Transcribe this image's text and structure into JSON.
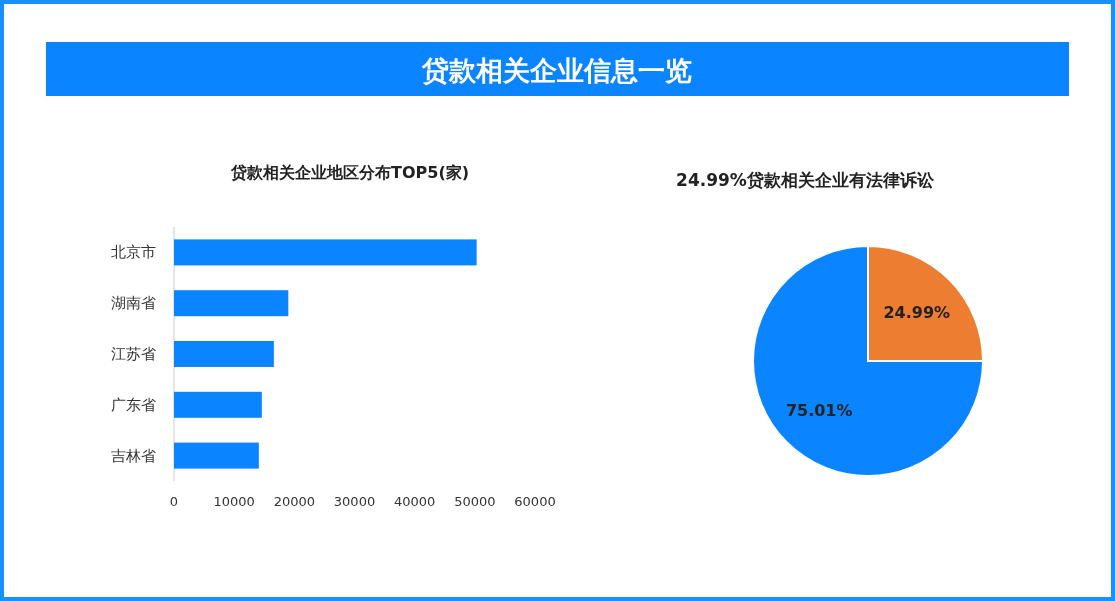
{
  "chart_data": [
    {
      "type": "other",
      "title": "贷款相关企业信息一览"
    },
    {
      "type": "bar",
      "orientation": "horizontal",
      "title": "贷款相关企业地区分布TOP5(家)",
      "categories": [
        "北京市",
        "湖南省",
        "江苏省",
        "广东省",
        "吉林省"
      ],
      "values": [
        50300,
        19000,
        16600,
        14600,
        14100
      ],
      "color": "#0a84ff",
      "xlim": [
        0,
        60000
      ],
      "xticks": [
        0,
        10000,
        20000,
        30000,
        40000,
        50000,
        60000
      ],
      "grid": false
    },
    {
      "type": "pie",
      "title": "24.99%贷款相关企业有法律诉讼",
      "categories": [
        null,
        null
      ],
      "values": [
        24.99,
        75.01
      ],
      "colors": [
        "#ed7d31",
        "#0a84ff"
      ],
      "value_labels": [
        "24.99%",
        "75.01%"
      ]
    }
  ]
}
